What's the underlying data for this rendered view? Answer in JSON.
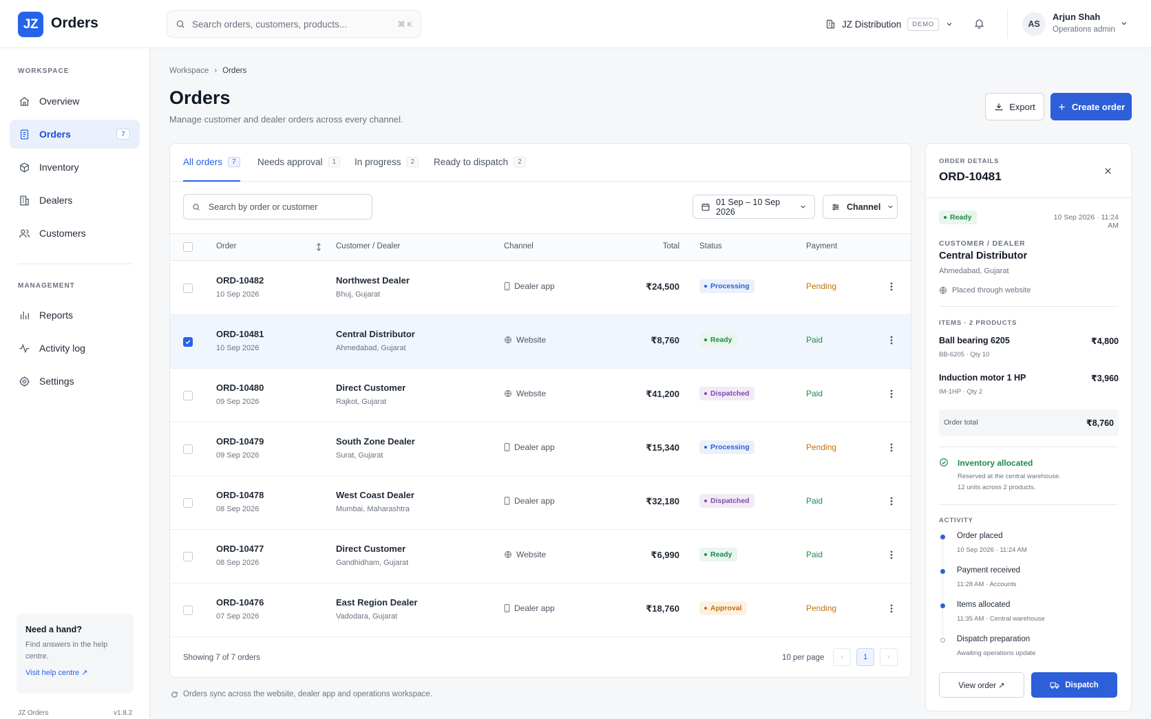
{
  "header": {
    "logo": "JZ",
    "app_title": "Orders",
    "search_placeholder": "Search orders, customers, products...",
    "search_shortcut": "⌘ K",
    "org_name": "JZ Distribution",
    "org_badge": "DEMO",
    "user_initials": "AS",
    "user_name": "Arjun Shah",
    "user_role": "Operations admin"
  },
  "sidebar": {
    "workspace_label": "WORKSPACE",
    "management_label": "MANAGEMENT",
    "workspace_items": [
      {
        "label": "Overview",
        "icon": "home-icon"
      },
      {
        "label": "Orders",
        "icon": "orders-icon",
        "count": "7",
        "active": true
      },
      {
        "label": "Inventory",
        "icon": "box-icon"
      },
      {
        "label": "Dealers",
        "icon": "building-icon"
      },
      {
        "label": "Customers",
        "icon": "users-icon"
      }
    ],
    "management_items": [
      {
        "label": "Reports",
        "icon": "bar-chart-icon"
      },
      {
        "label": "Activity log",
        "icon": "activity-icon"
      },
      {
        "label": "Settings",
        "icon": "gear-icon"
      }
    ],
    "help": {
      "title": "Need a hand?",
      "text": "Find answers in the help centre.",
      "link": "Visit help centre ↗"
    },
    "footer_app": "JZ Orders",
    "footer_version": "v1.8.2"
  },
  "main": {
    "breadcrumb_root": "Workspace",
    "breadcrumb_sep": "›",
    "breadcrumb_current": "Orders",
    "title": "Orders",
    "subtitle": "Manage customer and dealer orders across every channel.",
    "export_label": "Export",
    "create_label": "Create order",
    "tabs": [
      {
        "label": "All orders",
        "count": "7"
      },
      {
        "label": "Needs approval",
        "count": "1"
      },
      {
        "label": "In progress",
        "count": "2"
      },
      {
        "label": "Ready to dispatch",
        "count": "2"
      }
    ],
    "table_search_placeholder": "Search by order or customer",
    "date_range": "01 Sep – 10 Sep 2026",
    "channel_filter": "Channel",
    "columns": {
      "order": "Order",
      "customer": "Customer / Dealer",
      "channel": "Channel",
      "total": "Total",
      "status": "Status",
      "payment": "Payment"
    },
    "rows": [
      {
        "id": "ORD-10482",
        "date": "10 Sep 2026",
        "customer": "Northwest Dealer",
        "location": "Bhuj, Gujarat",
        "channel": "Dealer app",
        "channel_icon": "phone-icon",
        "total": "₹24,500",
        "status": "Processing",
        "payment": "Pending",
        "selected": false
      },
      {
        "id": "ORD-10481",
        "date": "10 Sep 2026",
        "customer": "Central Distributor",
        "location": "Ahmedabad, Gujarat",
        "channel": "Website",
        "channel_icon": "globe-icon",
        "total": "₹8,760",
        "status": "Ready",
        "payment": "Paid",
        "selected": true
      },
      {
        "id": "ORD-10480",
        "date": "09 Sep 2026",
        "customer": "Direct Customer",
        "location": "Rajkot, Gujarat",
        "channel": "Website",
        "channel_icon": "globe-icon",
        "total": "₹41,200",
        "status": "Dispatched",
        "payment": "Paid",
        "selected": false
      },
      {
        "id": "ORD-10479",
        "date": "09 Sep 2026",
        "customer": "South Zone Dealer",
        "location": "Surat, Gujarat",
        "channel": "Dealer app",
        "channel_icon": "phone-icon",
        "total": "₹15,340",
        "status": "Processing",
        "payment": "Pending",
        "selected": false
      },
      {
        "id": "ORD-10478",
        "date": "08 Sep 2026",
        "customer": "West Coast Dealer",
        "location": "Mumbai, Maharashtra",
        "channel": "Dealer app",
        "channel_icon": "phone-icon",
        "total": "₹32,180",
        "status": "Dispatched",
        "payment": "Paid",
        "selected": false
      },
      {
        "id": "ORD-10477",
        "date": "08 Sep 2026",
        "customer": "Direct Customer",
        "location": "Gandhidham, Gujarat",
        "channel": "Website",
        "channel_icon": "globe-icon",
        "total": "₹6,990",
        "status": "Ready",
        "payment": "Paid",
        "selected": false
      },
      {
        "id": "ORD-10476",
        "date": "07 Sep 2026",
        "customer": "East Region Dealer",
        "location": "Vadodara, Gujarat",
        "channel": "Dealer app",
        "channel_icon": "phone-icon",
        "total": "₹18,760",
        "status": "Approval",
        "payment": "Pending",
        "selected": false
      }
    ],
    "showing": "Showing 7 of 7 orders",
    "per_page": "10 per page",
    "page_prev": "‹",
    "page_current": "1",
    "page_next": "›",
    "sync_note": "Orders sync across the website, dealer app and operations workspace."
  },
  "status_colors": {
    "Processing": {
      "fg": "#2d5fd8",
      "bg": "#eaf0fc"
    },
    "Ready": {
      "fg": "#1e8a4a",
      "bg": "#e8f6ee"
    },
    "Dispatched": {
      "fg": "#7c4ea8",
      "bg": "#f1ebf8"
    },
    "Approval": {
      "fg": "#c2700a",
      "bg": "#fdf1e0"
    }
  },
  "payment_colors": {
    "Pending": "#c2700a",
    "Paid": "#1e8a4a"
  },
  "details": {
    "label": "ORDER DETAILS",
    "order_id": "ORD-10481",
    "status": "Ready",
    "timestamp": "10 Sep 2026 · 11:24 AM",
    "customer_label": "CUSTOMER / DEALER",
    "customer": "Central Distributor",
    "location": "Ahmedabad, Gujarat",
    "placed_through": "Placed through website",
    "items_label": "ITEMS · 2 PRODUCTS",
    "items": [
      {
        "name": "Ball bearing 6205",
        "meta": "BB-6205 · Qty 10",
        "price": "₹4,800"
      },
      {
        "name": "Induction motor 1 HP",
        "meta": "IM-1HP · Qty 2",
        "price": "₹3,960"
      }
    ],
    "total_label": "Order total",
    "total": "₹8,760",
    "allocation_title": "Inventory allocated",
    "allocation_line1": "Reserved at the central warehouse.",
    "allocation_line2": "12 units across 2 products.",
    "activity_label": "ACTIVITY",
    "activity": [
      {
        "title": "Order placed",
        "meta": "10 Sep 2026 · 11:24 AM",
        "done": true
      },
      {
        "title": "Payment received",
        "meta": "11:28 AM · Accounts",
        "done": true
      },
      {
        "title": "Items allocated",
        "meta": "11:35 AM · Central warehouse",
        "done": true
      },
      {
        "title": "Dispatch preparation",
        "meta": "Awaiting operations update",
        "done": false
      }
    ],
    "view_label": "View order ↗",
    "dispatch_label": "Dispatch"
  }
}
